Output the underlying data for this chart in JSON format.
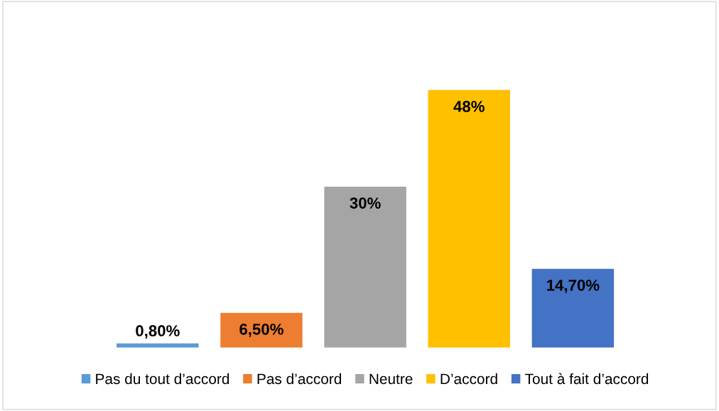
{
  "chart_data": {
    "type": "bar",
    "categories": [
      null
    ],
    "series": [
      {
        "name": "Pas du tout d’accord",
        "color": "#5b9bd5",
        "values": [
          0.8
        ],
        "value_labels": [
          "0,80%"
        ]
      },
      {
        "name": "Pas d’accord",
        "color": "#ed7d31",
        "values": [
          6.5
        ],
        "value_labels": [
          "6,50%"
        ]
      },
      {
        "name": "Neutre",
        "color": "#a5a5a5",
        "values": [
          30
        ],
        "value_labels": [
          "30%"
        ]
      },
      {
        "name": "D’accord",
        "color": "#ffc000",
        "values": [
          48
        ],
        "value_labels": [
          "48%"
        ]
      },
      {
        "name": "Tout à fait d’accord",
        "color": "#4472c4",
        "values": [
          14.7
        ],
        "value_labels": [
          "14,70%"
        ]
      }
    ],
    "legend": "bottom",
    "grid": false,
    "tick_labels": false
  }
}
